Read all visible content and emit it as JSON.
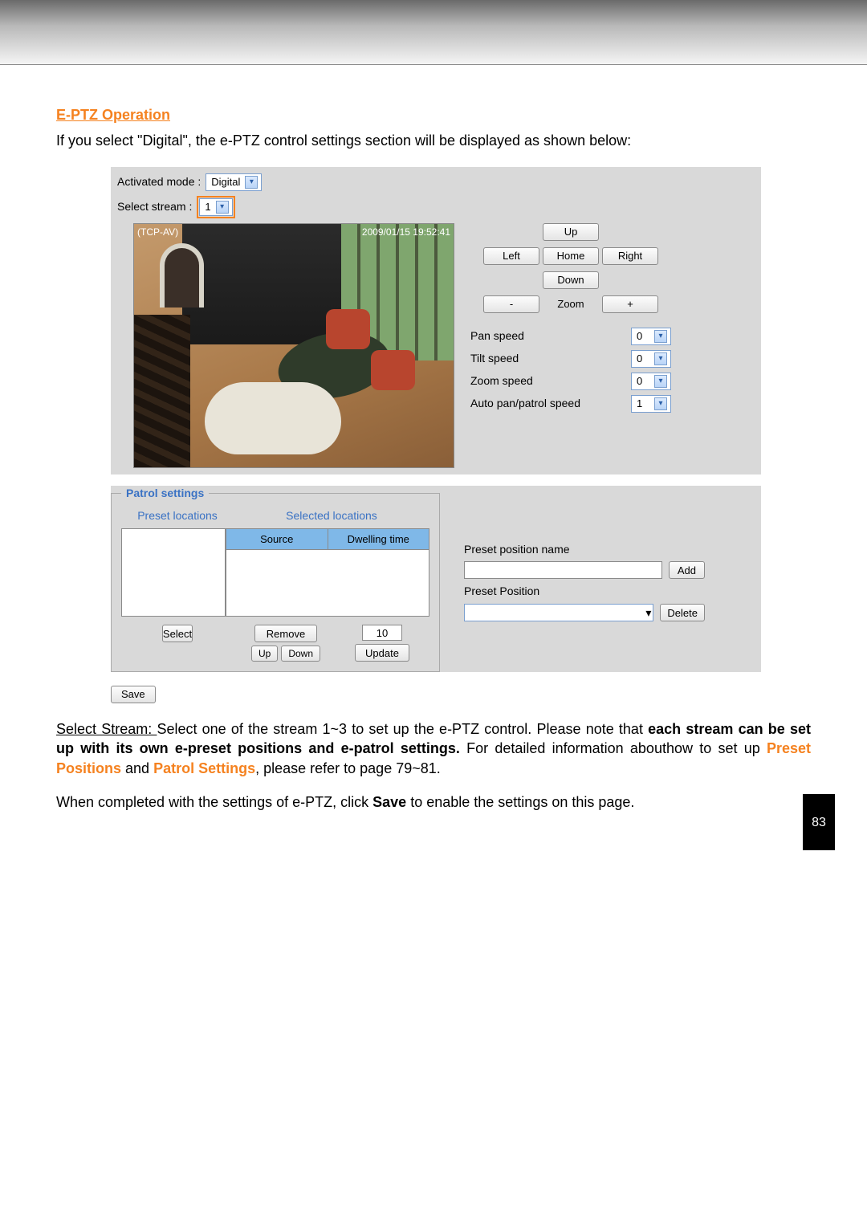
{
  "section_title": "E-PTZ Operation",
  "intro_text": "If you select \"Digital\", the e-PTZ control settings section will be displayed as shown below:",
  "mode": {
    "label": "Activated mode :",
    "value": "Digital"
  },
  "stream": {
    "label": "Select stream :",
    "value": "1"
  },
  "video": {
    "source_label": "(TCP-AV)",
    "timestamp": "2009/01/15 19:52:41"
  },
  "ptz": {
    "up": "Up",
    "left": "Left",
    "home": "Home",
    "right": "Right",
    "down": "Down",
    "minus": "-",
    "zoom": "Zoom",
    "plus": "+"
  },
  "speeds": {
    "pan": {
      "label": "Pan speed",
      "value": "0"
    },
    "tilt": {
      "label": "Tilt speed",
      "value": "0"
    },
    "zoom": {
      "label": "Zoom speed",
      "value": "0"
    },
    "auto": {
      "label": "Auto pan/patrol speed",
      "value": "1"
    }
  },
  "patrol": {
    "legend": "Patrol settings",
    "preset_locations_label": "Preset locations",
    "selected_locations_label": "Selected locations",
    "source_label": "Source",
    "dwelling_label": "Dwelling time",
    "select_btn": "Select",
    "remove_btn": "Remove",
    "up_btn": "Up",
    "down_btn": "Down",
    "dwell_value": "10",
    "update_btn": "Update"
  },
  "preset_side": {
    "name_label": "Preset position name",
    "add_btn": "Add",
    "position_label": "Preset Position",
    "delete_btn": "Delete"
  },
  "save_btn": "Save",
  "body": {
    "p1_a": "Select Stream: ",
    "p1_b": "Select one of the stream 1~3 to set up the e-PTZ control. Please note that ",
    "p1_bold": "each stream can be set up with its own e-preset positions and e-patrol settings.",
    "p1_c": " For detailed information abouthow to set up ",
    "p1_preset": "Preset Positions",
    "p1_and": " and ",
    "p1_patrol": "Patrol Settings",
    "p1_d": ", please refer to page 79~81.",
    "p2_a": "When completed with the settings of e-PTZ, click ",
    "p2_save": "Save",
    "p2_b": " to enable the settings on this page."
  },
  "page_number": "83"
}
